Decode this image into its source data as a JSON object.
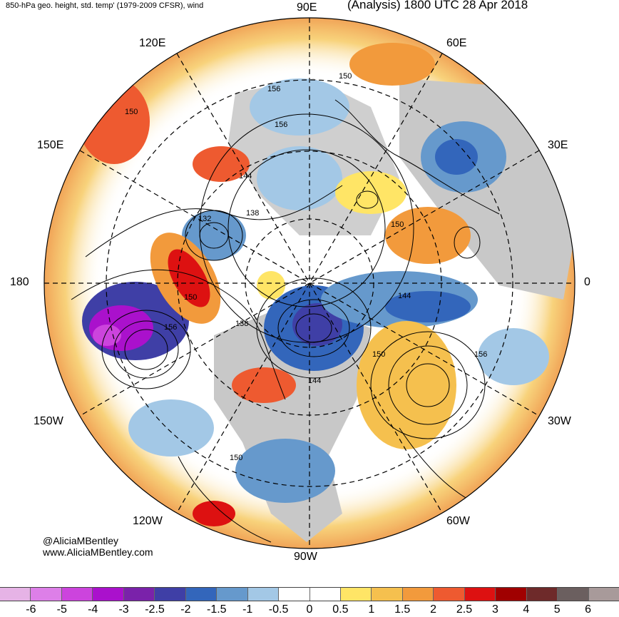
{
  "header": {
    "left_title": "850-hPa geo. height, std. temp' (1979-2009 CFSR), wind",
    "right_title": "(Analysis) 1800 UTC 28 Apr 2018"
  },
  "longitude_labels": {
    "top": "90E",
    "upper_left": "120E",
    "upper_right": "60E",
    "left_upper": "150E",
    "right_upper": "30E",
    "left": "180",
    "right": "0",
    "left_lower": "150W",
    "right_lower": "30W",
    "lower_left": "120W",
    "lower_right": "60W",
    "bottom": "90W"
  },
  "contour_labels": [
    "150",
    "156",
    "156",
    "150",
    "144",
    "132",
    "138",
    "150",
    "150",
    "144",
    "156",
    "138",
    "150",
    "156",
    "144",
    "150"
  ],
  "credits": {
    "handle": "@AliciaMBentley",
    "website": "www.AliciaMBentley.com"
  },
  "colorbar": {
    "colors": [
      "#e6b3e6",
      "#dd7fe8",
      "#cc44dd",
      "#aa11cc",
      "#7a22aa",
      "#3f3fa6",
      "#3366bb",
      "#6699cc",
      "#a3c8e6",
      "#ffffff",
      "#ffffff",
      "#ffe566",
      "#f5c04e",
      "#f29a3c",
      "#ee5a30",
      "#dd1111",
      "#a00000",
      "#6e2a2a",
      "#6b5f5f",
      "#a89a9a"
    ],
    "tick_labels": [
      "-6",
      "-5",
      "-4",
      "-3",
      "-2.5",
      "-2",
      "-1.5",
      "-1",
      "-0.5",
      "0",
      "0.5",
      "1",
      "1.5",
      "2",
      "2.5",
      "3",
      "4",
      "5",
      "6"
    ]
  }
}
